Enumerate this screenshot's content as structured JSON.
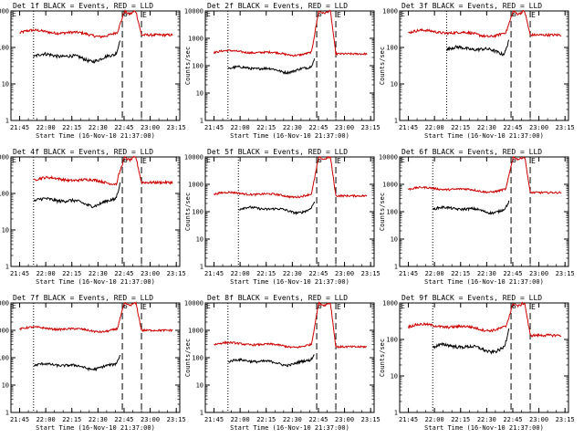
{
  "chart_data": [
    {
      "type": "line",
      "title": "Det 1f BLACK = Events, RED = LLD",
      "xlabel": "Start Time (16-Nov-10 21:37:00)",
      "ylabel": "Counts/sec",
      "ylim": [
        1,
        1000
      ],
      "yticks": [
        "1",
        "10",
        "100",
        "1000"
      ],
      "xticks": [
        "21:45",
        "22:00",
        "22:15",
        "22:30",
        "22:45",
        "23:00",
        "23:15"
      ],
      "markers": [
        "S",
        "E"
      ],
      "series": [
        {
          "name": "Events",
          "color": "#000000",
          "x_start": "21:53",
          "x_end": "22:43",
          "base": 55,
          "end_peak": 200
        },
        {
          "name": "LLD",
          "color": "#cc0000",
          "x_start": "21:45",
          "x_end": "23:13",
          "base": 250,
          "peak": 900,
          "post": 220
        }
      ]
    },
    {
      "type": "line",
      "title": "Det 2f BLACK = Events, RED = LLD",
      "xlabel": "Start Time (16-Nov-10 21:37:00)",
      "ylabel": "Counts/sec",
      "ylim": [
        1,
        10000
      ],
      "yticks": [
        "1",
        "10",
        "100",
        "1000",
        "10000"
      ],
      "xticks": [
        "21:45",
        "22:00",
        "22:15",
        "22:30",
        "22:45",
        "23:00",
        "23:15"
      ],
      "markers": [
        "S",
        "E"
      ],
      "series": [
        {
          "name": "Events",
          "color": "#000000",
          "x_start": "21:53",
          "x_end": "22:43",
          "base": 75,
          "end_peak": 200
        },
        {
          "name": "LLD",
          "color": "#cc0000",
          "x_start": "21:45",
          "x_end": "23:13",
          "base": 300,
          "peak": 9000,
          "post": 270
        }
      ]
    },
    {
      "type": "line",
      "title": "Det 3f BLACK = Events, RED = LLD",
      "xlabel": "Start Time (16-Nov-10 21:37:00)",
      "ylabel": "Counts/sec",
      "ylim": [
        1,
        1000
      ],
      "yticks": [
        "1",
        "10",
        "100",
        "1000"
      ],
      "xticks": [
        "21:45",
        "22:00",
        "22:15",
        "22:30",
        "22:45",
        "23:00",
        "23:15"
      ],
      "markers": [
        "S",
        "E"
      ],
      "series": [
        {
          "name": "Events",
          "color": "#000000",
          "x_start": "22:07",
          "x_end": "22:43",
          "base": 85,
          "end_peak": 200
        },
        {
          "name": "LLD",
          "color": "#cc0000",
          "x_start": "21:45",
          "x_end": "23:13",
          "base": 250,
          "peak": 900,
          "post": 220
        }
      ]
    },
    {
      "type": "line",
      "title": "Det 4f BLACK = Events, RED = LLD",
      "xlabel": "Start Time (16-Nov-10 21:37:00)",
      "ylabel": "Counts/sec",
      "ylim": [
        1,
        1000
      ],
      "yticks": [
        "1",
        "10",
        "100",
        "1000"
      ],
      "xticks": [
        "21:45",
        "22:00",
        "22:15",
        "22:30",
        "22:45",
        "23:00",
        "23:15"
      ],
      "markers": [
        "S",
        "E"
      ],
      "series": [
        {
          "name": "Events",
          "color": "#000000",
          "x_start": "21:53",
          "x_end": "22:43",
          "base": 60,
          "end_peak": 250
        },
        {
          "name": "LLD",
          "color": "#cc0000",
          "x_start": "21:53",
          "x_end": "23:13",
          "base": 230,
          "peak": 900,
          "post": 200
        }
      ]
    },
    {
      "type": "line",
      "title": "Det 5f BLACK = Events, RED = LLD",
      "xlabel": "Start Time (16-Nov-10 21:37:00)",
      "ylabel": "Counts/sec",
      "ylim": [
        1,
        10000
      ],
      "yticks": [
        "1",
        "10",
        "100",
        "1000",
        "10000"
      ],
      "xticks": [
        "21:45",
        "22:00",
        "22:15",
        "22:30",
        "22:45",
        "23:00",
        "23:15"
      ],
      "markers": [
        "S",
        "E"
      ],
      "series": [
        {
          "name": "Events",
          "color": "#000000",
          "x_start": "21:59",
          "x_end": "22:43",
          "base": 120,
          "end_peak": 250
        },
        {
          "name": "LLD",
          "color": "#cc0000",
          "x_start": "21:45",
          "x_end": "23:13",
          "base": 430,
          "peak": 9000,
          "post": 380
        }
      ]
    },
    {
      "type": "line",
      "title": "Det 6f BLACK = Events, RED = LLD",
      "xlabel": "Start Time (16-Nov-10 21:37:00)",
      "ylabel": "Counts/sec",
      "ylim": [
        1,
        10000
      ],
      "yticks": [
        "1",
        "10",
        "100",
        "1000",
        "10000"
      ],
      "xticks": [
        "21:45",
        "22:00",
        "22:15",
        "22:30",
        "22:45",
        "23:00",
        "23:15"
      ],
      "markers": [
        "S",
        "E"
      ],
      "series": [
        {
          "name": "Events",
          "color": "#000000",
          "x_start": "21:59",
          "x_end": "22:43",
          "base": 120,
          "end_peak": 250
        },
        {
          "name": "LLD",
          "color": "#cc0000",
          "x_start": "21:45",
          "x_end": "23:13",
          "base": 650,
          "peak": 9000,
          "post": 500
        }
      ]
    },
    {
      "type": "line",
      "title": "Det 7f BLACK = Events, RED = LLD",
      "xlabel": "Start Time (16-Nov-10 21:37:00)",
      "ylabel": "Counts/sec",
      "ylim": [
        1,
        10000
      ],
      "yticks": [
        "1",
        "10",
        "100",
        "1000",
        "10000"
      ],
      "xticks": [
        "21:45",
        "22:00",
        "22:15",
        "22:30",
        "22:45",
        "23:00",
        "23:15"
      ],
      "markers": [
        "S",
        "E"
      ],
      "series": [
        {
          "name": "Events",
          "color": "#000000",
          "x_start": "21:53",
          "x_end": "22:43",
          "base": 50,
          "end_peak": 150
        },
        {
          "name": "LLD",
          "color": "#cc0000",
          "x_start": "21:45",
          "x_end": "23:13",
          "base": 1100,
          "peak": 9000,
          "post": 1000
        }
      ]
    },
    {
      "type": "line",
      "title": "Det 8f BLACK = Events, RED = LLD",
      "xlabel": "Start Time (16-Nov-10 21:37:00)",
      "ylabel": "Counts/sec",
      "ylim": [
        1,
        10000
      ],
      "yticks": [
        "1",
        "10",
        "100",
        "1000",
        "10000"
      ],
      "xticks": [
        "21:45",
        "22:00",
        "22:15",
        "22:30",
        "22:45",
        "23:00",
        "23:15"
      ],
      "markers": [
        "S",
        "E"
      ],
      "series": [
        {
          "name": "Events",
          "color": "#000000",
          "x_start": "21:53",
          "x_end": "22:43",
          "base": 70,
          "end_peak": 150
        },
        {
          "name": "LLD",
          "color": "#cc0000",
          "x_start": "21:45",
          "x_end": "23:13",
          "base": 300,
          "peak": 9000,
          "post": 250
        }
      ]
    },
    {
      "type": "line",
      "title": "Det 9f BLACK = Events, RED = LLD",
      "xlabel": "Start Time (16-Nov-10 21:37:00)",
      "ylabel": "Counts/sec",
      "ylim": [
        1,
        1000
      ],
      "yticks": [
        "1",
        "10",
        "100",
        "1000"
      ],
      "xticks": [
        "21:45",
        "22:00",
        "22:15",
        "22:30",
        "22:45",
        "23:00",
        "23:15"
      ],
      "markers": [
        "S",
        "E"
      ],
      "series": [
        {
          "name": "Events",
          "color": "#000000",
          "x_start": "21:59",
          "x_end": "22:43",
          "base": 60,
          "end_peak": 250
        },
        {
          "name": "LLD",
          "color": "#cc0000",
          "x_start": "21:45",
          "x_end": "23:13",
          "base": 220,
          "peak": 900,
          "post": 130
        }
      ]
    }
  ]
}
